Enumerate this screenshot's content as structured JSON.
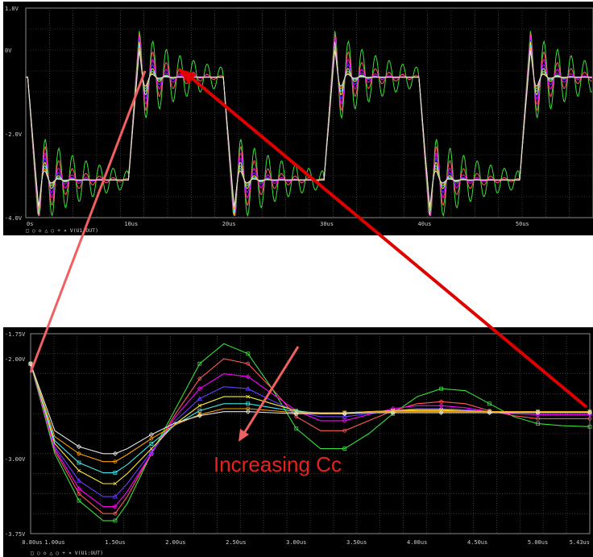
{
  "colors": {
    "background": "#000000",
    "grid": "#5a5a5a",
    "tick_text": "#cfcfcf",
    "arrow": "#e00000",
    "callout": "#f06060",
    "annotation": "#e5231b",
    "series": [
      "#37e03a",
      "#ff5a5a",
      "#ff00ff",
      "#6a3cff",
      "#ffe93a",
      "#46e6e6",
      "#ffa200",
      "#e6e6e6"
    ]
  },
  "chart_data": [
    {
      "type": "line",
      "title": "",
      "xlabel": "",
      "ylabel": "",
      "xlim": [
        0,
        58
      ],
      "ylim": [
        -4.0,
        1.0
      ],
      "x_unit": "us",
      "y_unit": "V",
      "grid": true,
      "x_ticks": [
        {
          "value": 0,
          "label": "0s"
        },
        {
          "value": 10,
          "label": "10us"
        },
        {
          "value": 20,
          "label": "20us"
        },
        {
          "value": 30,
          "label": "30us"
        },
        {
          "value": 40,
          "label": "40us"
        },
        {
          "value": 50,
          "label": "50us"
        }
      ],
      "y_ticks": [
        {
          "value": 1.0,
          "label": "1.0V"
        },
        {
          "value": 0.0,
          "label": "0V"
        },
        {
          "value": -2.0,
          "label": "-2.0V"
        },
        {
          "value": -4.0,
          "label": "-4.0V"
        }
      ],
      "waveform": {
        "high_level": -0.65,
        "low_level": -3.1,
        "period": 20,
        "first_fall": 0.2,
        "rise_offset": 10.3,
        "edge_time": 1.1,
        "ring_frequency": 0.45,
        "series_count": 8
      },
      "legend": "□ ○ ◇ △ ○ + × V(U1:OUT)",
      "legend_placement": "bottom-left"
    },
    {
      "type": "line",
      "title": "",
      "xlabel": "",
      "ylabel": "",
      "xlim": [
        0.8,
        5.43
      ],
      "ylim": [
        -3.75,
        -1.75
      ],
      "x_unit": "us",
      "y_unit": "V",
      "grid": true,
      "x_ticks": [
        {
          "value": 0.8,
          "label": "0.80us"
        },
        {
          "value": 1.0,
          "label": "1.00us"
        },
        {
          "value": 1.5,
          "label": "1.50us"
        },
        {
          "value": 2.0,
          "label": "2.00us"
        },
        {
          "value": 2.5,
          "label": "2.50us"
        },
        {
          "value": 3.0,
          "label": "3.00us"
        },
        {
          "value": 3.5,
          "label": "3.50us"
        },
        {
          "value": 4.0,
          "label": "4.00us"
        },
        {
          "value": 4.5,
          "label": "4.50us"
        },
        {
          "value": 5.0,
          "label": "5.00us"
        },
        {
          "value": 5.43,
          "label": "5.43us"
        }
      ],
      "y_ticks": [
        {
          "value": -1.75,
          "label": "-1.75V"
        },
        {
          "value": -2.0,
          "label": "-2.00V"
        },
        {
          "value": -3.0,
          "label": "-3.00V"
        },
        {
          "value": -3.75,
          "label": "-3.75V"
        }
      ],
      "x": [
        0.8,
        1.0,
        1.2,
        1.4,
        1.5,
        1.6,
        1.8,
        2.0,
        2.2,
        2.4,
        2.6,
        2.8,
        3.0,
        3.2,
        3.4,
        3.6,
        3.8,
        4.0,
        4.2,
        4.4,
        4.6,
        4.8,
        5.0,
        5.2,
        5.43
      ],
      "series": [
        {
          "values": [
            -2.05,
            -2.95,
            -3.42,
            -3.62,
            -3.62,
            -3.45,
            -2.95,
            -2.5,
            -2.05,
            -1.85,
            -1.95,
            -2.3,
            -2.7,
            -2.9,
            -2.9,
            -2.75,
            -2.55,
            -2.38,
            -2.3,
            -2.32,
            -2.45,
            -2.58,
            -2.65,
            -2.67,
            -2.68
          ]
        },
        {
          "values": [
            -2.05,
            -2.92,
            -3.35,
            -3.55,
            -3.55,
            -3.38,
            -2.95,
            -2.55,
            -2.2,
            -2.0,
            -2.05,
            -2.3,
            -2.58,
            -2.72,
            -2.72,
            -2.62,
            -2.52,
            -2.45,
            -2.43,
            -2.45,
            -2.52,
            -2.57,
            -2.6,
            -2.6,
            -2.6
          ]
        },
        {
          "values": [
            -2.05,
            -2.9,
            -3.3,
            -3.48,
            -3.48,
            -3.33,
            -2.95,
            -2.58,
            -2.3,
            -2.15,
            -2.18,
            -2.35,
            -2.52,
            -2.62,
            -2.62,
            -2.56,
            -2.5,
            -2.47,
            -2.47,
            -2.49,
            -2.53,
            -2.55,
            -2.56,
            -2.56,
            -2.56
          ]
        },
        {
          "values": [
            -2.05,
            -2.88,
            -3.22,
            -3.38,
            -3.38,
            -3.25,
            -2.93,
            -2.62,
            -2.4,
            -2.28,
            -2.3,
            -2.42,
            -2.53,
            -2.58,
            -2.58,
            -2.55,
            -2.52,
            -2.5,
            -2.5,
            -2.51,
            -2.53,
            -2.54,
            -2.54,
            -2.54,
            -2.54
          ]
        },
        {
          "values": [
            -2.05,
            -2.85,
            -3.12,
            -3.25,
            -3.25,
            -3.15,
            -2.9,
            -2.65,
            -2.47,
            -2.38,
            -2.38,
            -2.45,
            -2.52,
            -2.55,
            -2.55,
            -2.53,
            -2.52,
            -2.51,
            -2.51,
            -2.52,
            -2.53,
            -2.53,
            -2.53,
            -2.53,
            -2.53
          ]
        },
        {
          "values": [
            -2.05,
            -2.82,
            -3.04,
            -3.14,
            -3.14,
            -3.06,
            -2.85,
            -2.66,
            -2.52,
            -2.45,
            -2.45,
            -2.49,
            -2.53,
            -2.54,
            -2.54,
            -2.53,
            -2.52,
            -2.52,
            -2.52,
            -2.52,
            -2.53,
            -2.53,
            -2.53,
            -2.53,
            -2.53
          ]
        },
        {
          "values": [
            -2.05,
            -2.78,
            -2.95,
            -3.03,
            -3.03,
            -2.96,
            -2.8,
            -2.66,
            -2.56,
            -2.5,
            -2.5,
            -2.52,
            -2.54,
            -2.54,
            -2.54,
            -2.53,
            -2.53,
            -2.53,
            -2.53,
            -2.53,
            -2.53,
            -2.53,
            -2.53,
            -2.53,
            -2.53
          ]
        },
        {
          "values": [
            -2.05,
            -2.72,
            -2.88,
            -2.95,
            -2.95,
            -2.9,
            -2.76,
            -2.64,
            -2.57,
            -2.53,
            -2.53,
            -2.54,
            -2.55,
            -2.55,
            -2.55,
            -2.54,
            -2.54,
            -2.54,
            -2.54,
            -2.54,
            -2.54,
            -2.54,
            -2.54,
            -2.54,
            -2.54
          ]
        }
      ],
      "legend": "□ ○ ◇ △ ○ + × V(U1:OUT)",
      "legend_placement": "bottom-left"
    }
  ],
  "annotation": {
    "text": "Increasing Cc"
  }
}
